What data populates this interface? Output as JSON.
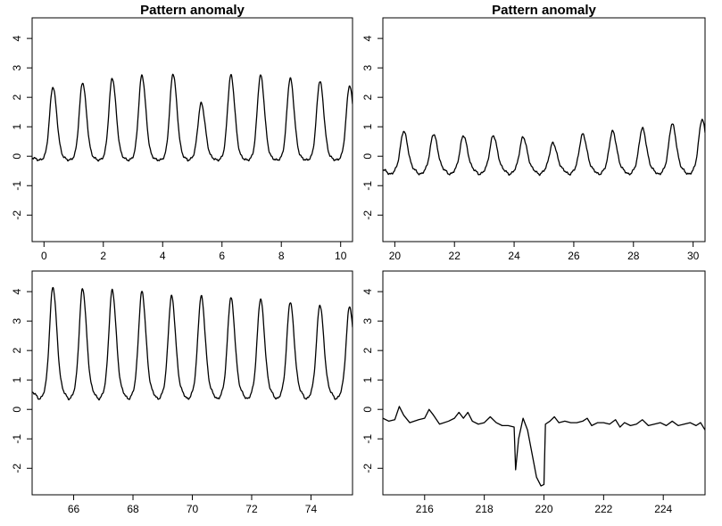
{
  "chart_data": [
    {
      "type": "line",
      "title": "Pattern anomaly",
      "xlabel": "",
      "ylabel": "",
      "xlim": [
        -0.4,
        10.4
      ],
      "ylim": [
        -2.9,
        4.7
      ],
      "xticks": [
        0,
        2,
        4,
        6,
        8,
        10
      ],
      "yticks": [
        -2,
        -1,
        0,
        1,
        2,
        3,
        4
      ],
      "grid": false,
      "series": [
        {
          "peaks": [
            {
              "x": 0.3,
              "y": 2.35
            },
            {
              "x": 1.3,
              "y": 2.5
            },
            {
              "x": 2.3,
              "y": 2.65
            },
            {
              "x": 3.3,
              "y": 2.75
            },
            {
              "x": 4.35,
              "y": 2.8
            },
            {
              "x": 5.3,
              "y": 1.8
            },
            {
              "x": 6.3,
              "y": 2.75
            },
            {
              "x": 7.3,
              "y": 2.75
            },
            {
              "x": 8.3,
              "y": 2.65
            },
            {
              "x": 9.3,
              "y": 2.55
            },
            {
              "x": 10.3,
              "y": 2.4
            }
          ],
          "baseline": -0.05,
          "trough": -0.15,
          "start": {
            "x": 0.05,
            "y": -0.05
          },
          "end": {
            "x": 10.4,
            "y": 2.1
          }
        }
      ]
    },
    {
      "type": "line",
      "title": "Pattern anomaly",
      "xlabel": "",
      "ylabel": "",
      "xlim": [
        19.6,
        30.4
      ],
      "ylim": [
        -2.9,
        4.7
      ],
      "xticks": [
        20,
        22,
        24,
        26,
        28,
        30
      ],
      "yticks": [
        -2,
        -1,
        0,
        1,
        2,
        3,
        4
      ],
      "grid": false,
      "series": [
        {
          "peaks": [
            {
              "x": 20.3,
              "y": 0.85
            },
            {
              "x": 21.3,
              "y": 0.75
            },
            {
              "x": 22.3,
              "y": 0.7
            },
            {
              "x": 23.3,
              "y": 0.7
            },
            {
              "x": 24.3,
              "y": 0.65
            },
            {
              "x": 25.3,
              "y": 0.45
            },
            {
              "x": 26.3,
              "y": 0.75
            },
            {
              "x": 27.3,
              "y": 0.85
            },
            {
              "x": 28.3,
              "y": 0.95
            },
            {
              "x": 29.3,
              "y": 1.1
            },
            {
              "x": 30.3,
              "y": 1.25
            }
          ],
          "baseline": -0.45,
          "trough": -0.65,
          "start": {
            "x": 19.6,
            "y": -0.35
          },
          "end": {
            "x": 30.4,
            "y": 0.9
          }
        }
      ]
    },
    {
      "type": "line",
      "title": "",
      "xlabel": "",
      "ylabel": "",
      "xlim": [
        64.6,
        75.4
      ],
      "ylim": [
        -2.9,
        4.7
      ],
      "xticks": [
        66,
        68,
        70,
        72,
        74
      ],
      "yticks": [
        -2,
        -1,
        0,
        1,
        2,
        3,
        4
      ],
      "grid": false,
      "series": [
        {
          "peaks": [
            {
              "x": 65.3,
              "y": 4.15
            },
            {
              "x": 66.3,
              "y": 4.1
            },
            {
              "x": 67.3,
              "y": 4.05
            },
            {
              "x": 68.3,
              "y": 4.0
            },
            {
              "x": 69.3,
              "y": 3.85
            },
            {
              "x": 70.3,
              "y": 3.85
            },
            {
              "x": 71.3,
              "y": 3.8
            },
            {
              "x": 72.3,
              "y": 3.75
            },
            {
              "x": 73.3,
              "y": 3.65
            },
            {
              "x": 74.3,
              "y": 3.55
            },
            {
              "x": 75.3,
              "y": 3.5
            }
          ],
          "baseline": 0.6,
          "trough": 0.3,
          "start": {
            "x": 64.6,
            "y": 0.45
          },
          "end": {
            "x": 75.4,
            "y": 3.2
          }
        }
      ]
    },
    {
      "type": "line",
      "title": "",
      "xlabel": "",
      "ylabel": "",
      "xlim": [
        214.6,
        225.4
      ],
      "ylim": [
        -2.9,
        4.7
      ],
      "xticks": [
        216,
        218,
        220,
        222,
        224
      ],
      "yticks": [
        -2,
        -1,
        0,
        1,
        2,
        3,
        4
      ],
      "grid": false,
      "series": [
        {
          "points": [
            [
              214.6,
              -0.3
            ],
            [
              214.8,
              -0.4
            ],
            [
              215.0,
              -0.35
            ],
            [
              215.15,
              0.1
            ],
            [
              215.3,
              -0.2
            ],
            [
              215.5,
              -0.45
            ],
            [
              215.8,
              -0.35
            ],
            [
              216.0,
              -0.3
            ],
            [
              216.15,
              0.0
            ],
            [
              216.3,
              -0.2
            ],
            [
              216.5,
              -0.5
            ],
            [
              216.8,
              -0.4
            ],
            [
              217.0,
              -0.3
            ],
            [
              217.15,
              -0.1
            ],
            [
              217.3,
              -0.3
            ],
            [
              217.45,
              -0.1
            ],
            [
              217.6,
              -0.4
            ],
            [
              217.8,
              -0.5
            ],
            [
              218.0,
              -0.45
            ],
            [
              218.2,
              -0.25
            ],
            [
              218.4,
              -0.45
            ],
            [
              218.6,
              -0.55
            ],
            [
              218.8,
              -0.55
            ],
            [
              219.0,
              -0.6
            ],
            [
              219.05,
              -2.05
            ],
            [
              219.15,
              -1.0
            ],
            [
              219.3,
              -0.3
            ],
            [
              219.45,
              -0.7
            ],
            [
              219.6,
              -1.5
            ],
            [
              219.75,
              -2.3
            ],
            [
              219.9,
              -2.6
            ],
            [
              220.0,
              -2.55
            ],
            [
              220.05,
              -0.5
            ],
            [
              220.2,
              -0.4
            ],
            [
              220.35,
              -0.25
            ],
            [
              220.5,
              -0.45
            ],
            [
              220.7,
              -0.4
            ],
            [
              220.9,
              -0.45
            ],
            [
              221.1,
              -0.45
            ],
            [
              221.3,
              -0.4
            ],
            [
              221.45,
              -0.3
            ],
            [
              221.6,
              -0.55
            ],
            [
              221.8,
              -0.45
            ],
            [
              222.0,
              -0.45
            ],
            [
              222.2,
              -0.5
            ],
            [
              222.4,
              -0.35
            ],
            [
              222.55,
              -0.6
            ],
            [
              222.7,
              -0.45
            ],
            [
              222.9,
              -0.55
            ],
            [
              223.1,
              -0.5
            ],
            [
              223.3,
              -0.35
            ],
            [
              223.5,
              -0.55
            ],
            [
              223.7,
              -0.5
            ],
            [
              223.9,
              -0.45
            ],
            [
              224.1,
              -0.55
            ],
            [
              224.3,
              -0.4
            ],
            [
              224.5,
              -0.55
            ],
            [
              224.7,
              -0.5
            ],
            [
              224.9,
              -0.45
            ],
            [
              225.1,
              -0.55
            ],
            [
              225.25,
              -0.45
            ],
            [
              225.4,
              -0.7
            ]
          ]
        }
      ]
    }
  ]
}
